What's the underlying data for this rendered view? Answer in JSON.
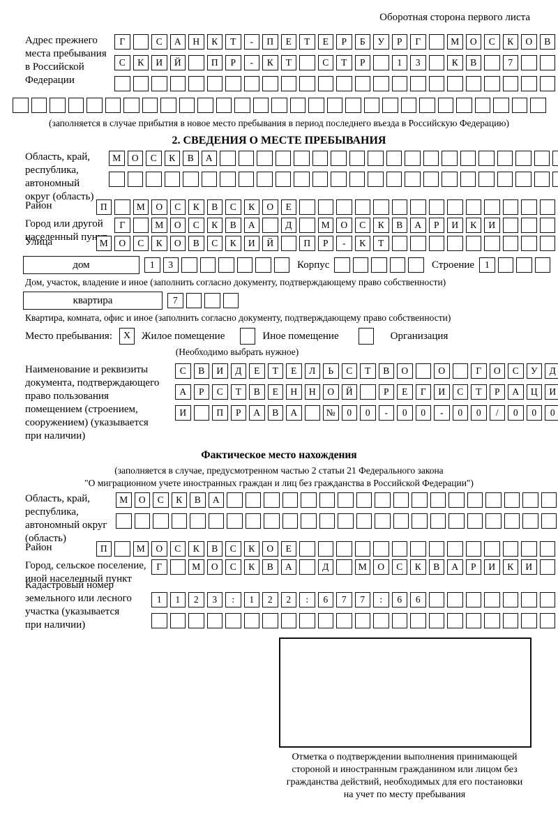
{
  "header_note": "Оборотная сторона первого листа",
  "prev_address": {
    "label_lines": [
      "Адрес прежнего",
      "места пребывания",
      "в Российской",
      "Федерации"
    ],
    "rows": [
      {
        "n": 24,
        "text": "Г САНКТ-ПЕТЕРБУРГ МОСКОВ"
      },
      {
        "n": 24,
        "text": "СКИЙ ПР-КТ СТР 13 КВ 7"
      },
      {
        "n": 24,
        "text": ""
      }
    ],
    "full_row": {
      "n": 29,
      "text": ""
    },
    "caption": "(заполняется в случае прибытия в новое место пребывания в период последнего въезда в Российскую Федерацию)"
  },
  "section2": {
    "title": "2. СВЕДЕНИЯ О МЕСТЕ ПРЕБЫВАНИЯ",
    "region": {
      "label_lines": [
        "Область, край,",
        "республика,",
        "автономный",
        "округ (область)"
      ],
      "rows": [
        {
          "n": 25,
          "text": "МОСКВА"
        },
        {
          "n": 25,
          "text": ""
        }
      ]
    },
    "district": {
      "label": "Район",
      "row": {
        "n": 25,
        "text": "П МОСКВСКОЕ"
      }
    },
    "city": {
      "label_lines": [
        "Город или другой",
        "населенный пункт"
      ],
      "row": {
        "n": 24,
        "text": "Г МОСКВА Д МОСКВАРИКИ"
      }
    },
    "street": {
      "label": "Улица",
      "row": {
        "n": 25,
        "text": "МОСКОВСКИЙ ПР-КТ"
      }
    },
    "house": {
      "box_label": "дом",
      "num": {
        "n": 8,
        "text": "13"
      },
      "korpus_label": "Корпус",
      "korpus": {
        "n": 5,
        "text": ""
      },
      "stroenie_label": "Строение",
      "stroenie": {
        "n": 4,
        "text": "1"
      },
      "caption": "Дом, участок, владение и иное (заполнить согласно документу, подтверждающему право собственности)"
    },
    "apartment": {
      "box_label": "квартира",
      "num": {
        "n": 4,
        "text": "7"
      },
      "caption": "Квартира, комната, офис и иное (заполнить согласно документу, подтверждающему право собственности)"
    },
    "stay_type": {
      "label": "Место пребывания:",
      "options": [
        {
          "label": "Жилое помещение",
          "checked": "X"
        },
        {
          "label": "Иное помещение",
          "checked": ""
        },
        {
          "label": "Организация",
          "checked": ""
        }
      ],
      "caption": "(Необходимо выбрать нужное)"
    },
    "document": {
      "label_lines": [
        "Наименование и реквизиты",
        "документа, подтверждающего",
        "право пользования",
        "помещением (строением,",
        "сооружением) (указывается",
        "при наличии)"
      ],
      "rows": [
        {
          "n": 21,
          "text": "СВИДЕТЕЛЬСТВО О ГОСУД"
        },
        {
          "n": 21,
          "text": "АРСТВЕННОЙ РЕГИСТРАЦИ"
        },
        {
          "n": 21,
          "text": "И ПРАВА №00-00-00/000"
        }
      ]
    }
  },
  "actual_location": {
    "title": "Фактическое место нахождения",
    "subtitle_lines": [
      "(заполняется в случае, предусмотренном частью 2 статьи 21 Федерального закона",
      "\"О миграционном учете иностранных граждан и лиц без гражданства в Российской Федерации\")"
    ],
    "region": {
      "label_lines": [
        "Область, край,",
        "республика,",
        "автономный округ",
        "(область)"
      ],
      "rows": [
        {
          "n": 24,
          "text": "МОСКВА"
        },
        {
          "n": 24,
          "text": ""
        }
      ]
    },
    "district": {
      "label": "Район",
      "row": {
        "n": 25,
        "text": "П МОСКВСКОЕ"
      }
    },
    "city": {
      "label_lines": [
        "Город, сельское поселение,",
        "иной населенный пункт"
      ],
      "row": {
        "n": 22,
        "text": "Г МОСКВА Д МОСКВАРИКИ"
      }
    },
    "cadastral": {
      "label_lines": [
        "Кадастровый номер",
        "земельного или лесного",
        "участка (указывается",
        "при наличии)"
      ],
      "rows": [
        {
          "n": 22,
          "text": "1123:122:677:66"
        },
        {
          "n": 22,
          "text": ""
        }
      ]
    },
    "stamp_caption_lines": [
      "Отметка о подтверждении выполнения принимающей",
      "стороной и иностранным гражданином или лицом без",
      "гражданства действий, необходимых для его постановки",
      "на учет по месту пребывания"
    ]
  }
}
